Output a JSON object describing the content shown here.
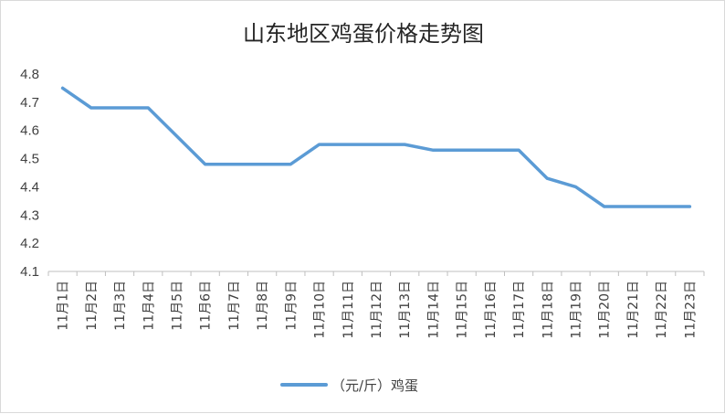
{
  "chart_data": {
    "type": "line",
    "title": "山东地区鸡蛋价格走势图",
    "xlabel": "",
    "ylabel": "",
    "categories": [
      "11月1日",
      "11月2日",
      "11月3日",
      "11月4日",
      "11月5日",
      "11月6日",
      "11月7日",
      "11月8日",
      "11月9日",
      "11月10日",
      "11月11日",
      "11月12日",
      "11月13日",
      "11月14日",
      "11月15日",
      "11月16日",
      "11月17日",
      "11月18日",
      "11月19日",
      "11月20日",
      "11月21日",
      "11月22日",
      "11月23日"
    ],
    "series": [
      {
        "name": "（元/斤）鸡蛋",
        "color": "#5b9bd5",
        "values": [
          4.75,
          4.68,
          4.68,
          4.68,
          4.58,
          4.48,
          4.48,
          4.48,
          4.48,
          4.55,
          4.55,
          4.55,
          4.55,
          4.53,
          4.53,
          4.53,
          4.53,
          4.43,
          4.4,
          4.33,
          4.33,
          4.33,
          4.33
        ]
      }
    ],
    "ylim": [
      4.1,
      4.8
    ],
    "yticks": [
      "4.1",
      "4.2",
      "4.3",
      "4.4",
      "4.5",
      "4.6",
      "4.7",
      "4.8"
    ],
    "grid": false,
    "legend": "bottom"
  }
}
